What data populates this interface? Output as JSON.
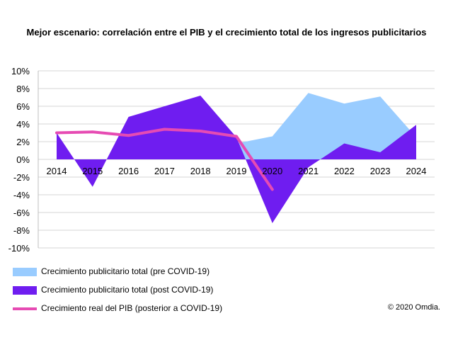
{
  "chart_data": {
    "type": "area",
    "title": "Mejor escenario: correlación entre el PIB y el crecimiento total de los ingresos publicitarios",
    "x": [
      "2014",
      "2015",
      "2016",
      "2017",
      "2018",
      "2019",
      "2020",
      "2021",
      "2022",
      "2023",
      "2024"
    ],
    "y_ticks": [
      "10%",
      "8%",
      "6%",
      "4%",
      "2%",
      "0%",
      "-2%",
      "-4%",
      "-6%",
      "-8%",
      "-10%"
    ],
    "ylim": [
      -10,
      10
    ],
    "grid": true,
    "legend_position": "bottom-left",
    "series": [
      {
        "name": "Crecimiento publicitario total (pre COVID-19)",
        "type": "area",
        "color": "#99CCFF",
        "values": [
          null,
          null,
          null,
          null,
          null,
          1.8,
          2.6,
          7.5,
          6.3,
          7.1,
          2.5
        ]
      },
      {
        "name": "Crecimiento publicitario total (post COVID-19)",
        "type": "area",
        "color": "#6F1DF0",
        "values": [
          3.0,
          -3.1,
          4.8,
          6.0,
          7.2,
          2.5,
          -7.2,
          -0.9,
          1.8,
          0.8,
          3.9
        ]
      },
      {
        "name": "Crecimiento real del PIB (posterior a COVID-19)",
        "type": "line",
        "color": "#E64BB3",
        "values": [
          3.0,
          3.1,
          2.7,
          3.4,
          3.2,
          2.6,
          -3.4,
          null,
          null,
          null,
          null
        ]
      }
    ]
  },
  "copyright": "© 2020 Omdia."
}
